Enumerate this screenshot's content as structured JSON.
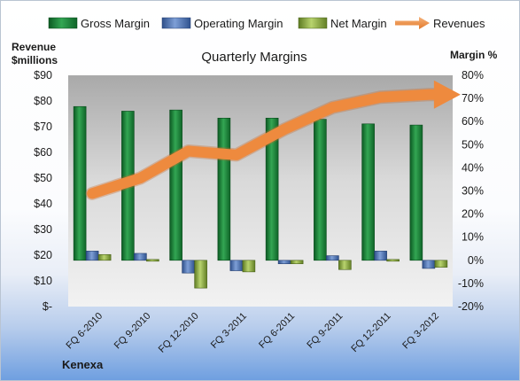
{
  "chart_data": {
    "type": "bar",
    "title": "Quarterly Margins",
    "left_axis_label": [
      "Revenue",
      "$millions"
    ],
    "right_axis_label": "Margin %",
    "left_ticks": [
      "$-",
      "$10",
      "$20",
      "$30",
      "$40",
      "$50",
      "$60",
      "$70",
      "$80",
      "$90"
    ],
    "right_ticks": [
      "-20%",
      "-10%",
      "0%",
      "10%",
      "20%",
      "30%",
      "40%",
      "50%",
      "60%",
      "70%",
      "80%"
    ],
    "left_ylim": [
      0,
      90
    ],
    "right_ylim": [
      -20,
      80
    ],
    "categories": [
      "FQ 6-2010",
      "FQ 9-2010",
      "FQ 12-2010",
      "FQ 3-2011",
      "FQ 6-2011",
      "FQ 9-2011",
      "FQ 12-2011",
      "FQ 3-2012"
    ],
    "series": [
      {
        "name": "Gross Margin",
        "axis": "right",
        "kind": "bar",
        "color": "#1f8a3c",
        "values": [
          66.5,
          64.5,
          65,
          61.5,
          61.5,
          61,
          59,
          58.5
        ]
      },
      {
        "name": "Operating Margin",
        "axis": "right",
        "kind": "bar",
        "color": "#4b72b8",
        "values": [
          4,
          3,
          -5.5,
          -4.5,
          -1.5,
          2,
          4,
          -3.5
        ]
      },
      {
        "name": "Net Margin",
        "axis": "right",
        "kind": "bar",
        "color": "#93b14a",
        "values": [
          2.5,
          0,
          -12,
          -5,
          -1.5,
          -4,
          -0.5,
          -3
        ]
      },
      {
        "name": "Revenues",
        "axis": "left",
        "kind": "line",
        "color": "#ee8a3e",
        "values": [
          44,
          50,
          60.5,
          59,
          69,
          77.5,
          81.5,
          82.5
        ]
      }
    ],
    "legend_position": "top",
    "grid": false,
    "brand": "Kenexa"
  }
}
